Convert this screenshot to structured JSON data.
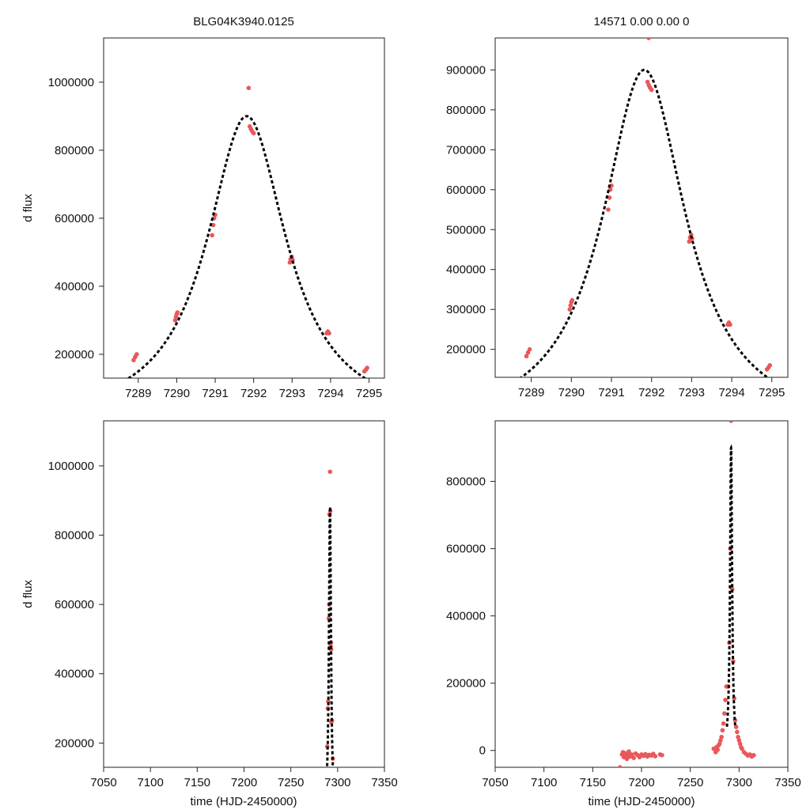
{
  "figure": {
    "point_color": "#e8585a",
    "model_color": "#000000"
  },
  "chart_data": [
    {
      "id": "top-left",
      "type": "scatter",
      "title": "BLG04K3940.0125",
      "xlabel": "",
      "ylabel": "d flux",
      "xlim": [
        7288.1,
        7295.4
      ],
      "ylim": [
        130000,
        1130000
      ],
      "xticks": [
        7289,
        7290,
        7291,
        7292,
        7293,
        7294,
        7295
      ],
      "yticks": [
        200000,
        400000,
        600000,
        800000,
        1000000
      ],
      "grid": false,
      "model": {
        "t0": 7291.82,
        "peak": 900000,
        "base": 0,
        "halfwidth": 1.26,
        "style": "dashed"
      },
      "points": [
        [
          7288.88,
          183000
        ],
        [
          7288.92,
          192000
        ],
        [
          7288.96,
          200000
        ],
        [
          7289.96,
          300000
        ],
        [
          7289.98,
          310000
        ],
        [
          7290.0,
          318000
        ],
        [
          7290.02,
          323000
        ],
        [
          7290.92,
          550000
        ],
        [
          7290.95,
          580000
        ],
        [
          7290.97,
          600000
        ],
        [
          7291.0,
          610000
        ],
        [
          7291.87,
          983000
        ],
        [
          7291.9,
          870000
        ],
        [
          7291.93,
          862000
        ],
        [
          7291.96,
          856000
        ],
        [
          7292.0,
          850000
        ],
        [
          7292.94,
          470000
        ],
        [
          7292.96,
          480000
        ],
        [
          7292.99,
          487000
        ],
        [
          7293.01,
          478000
        ],
        [
          7293.9,
          262000
        ],
        [
          7293.93,
          267000
        ],
        [
          7293.96,
          262000
        ],
        [
          7294.88,
          150000
        ],
        [
          7294.92,
          155000
        ],
        [
          7294.95,
          160000
        ]
      ]
    },
    {
      "id": "top-right",
      "type": "scatter",
      "title": "14571   0.00   0.00   0",
      "xlabel": "",
      "ylabel": "",
      "xlim": [
        7288.1,
        7295.4
      ],
      "ylim": [
        130000,
        980000
      ],
      "xticks": [
        7289,
        7290,
        7291,
        7292,
        7293,
        7294,
        7295
      ],
      "yticks": [
        200000,
        300000,
        400000,
        500000,
        600000,
        700000,
        800000,
        900000
      ],
      "grid": false,
      "model": {
        "t0": 7291.82,
        "peak": 900000,
        "base": 0,
        "halfwidth": 1.26,
        "style": "dashed"
      },
      "points": [
        [
          7288.88,
          183000
        ],
        [
          7288.92,
          192000
        ],
        [
          7288.96,
          200000
        ],
        [
          7289.96,
          300000
        ],
        [
          7289.98,
          310000
        ],
        [
          7290.0,
          318000
        ],
        [
          7290.02,
          323000
        ],
        [
          7290.92,
          550000
        ],
        [
          7290.95,
          580000
        ],
        [
          7290.97,
          600000
        ],
        [
          7291.0,
          610000
        ],
        [
          7291.93,
          980000
        ],
        [
          7291.9,
          870000
        ],
        [
          7291.93,
          862000
        ],
        [
          7291.96,
          856000
        ],
        [
          7292.0,
          850000
        ],
        [
          7292.94,
          470000
        ],
        [
          7292.96,
          480000
        ],
        [
          7292.99,
          487000
        ],
        [
          7293.01,
          478000
        ],
        [
          7293.9,
          262000
        ],
        [
          7293.93,
          267000
        ],
        [
          7293.96,
          262000
        ],
        [
          7294.88,
          150000
        ],
        [
          7294.92,
          155000
        ],
        [
          7294.95,
          160000
        ]
      ]
    },
    {
      "id": "bottom-left",
      "type": "scatter",
      "title": "",
      "xlabel": "time (HJD-2450000)",
      "ylabel": "d flux",
      "xlim": [
        7050,
        7350
      ],
      "ylim": [
        130000,
        1130000
      ],
      "xticks": [
        7050,
        7100,
        7150,
        7200,
        7250,
        7300,
        7350
      ],
      "yticks": [
        200000,
        400000,
        600000,
        800000,
        1000000
      ],
      "grid": false,
      "model": {
        "t0": 7291.82,
        "peak": 900000,
        "base": 0,
        "halfwidth": 1.26,
        "style": "dashed"
      },
      "points": [
        [
          7288.9,
          190000
        ],
        [
          7289.5,
          300000
        ],
        [
          7290.0,
          320000
        ],
        [
          7290.5,
          560000
        ],
        [
          7291.0,
          600000
        ],
        [
          7291.3,
          860000
        ],
        [
          7291.9,
          983000
        ],
        [
          7292.2,
          870000
        ],
        [
          7292.5,
          480000
        ],
        [
          7292.9,
          490000
        ],
        [
          7293.0,
          470000
        ],
        [
          7293.3,
          260000
        ],
        [
          7294.0,
          265000
        ],
        [
          7294.9,
          155000
        ]
      ]
    },
    {
      "id": "bottom-right",
      "type": "scatter",
      "title": "",
      "xlabel": "time (HJD-2450000)",
      "ylabel": "",
      "xlim": [
        7050,
        7350
      ],
      "ylim": [
        -50000,
        980000
      ],
      "xticks": [
        7050,
        7100,
        7150,
        7200,
        7250,
        7300,
        7350
      ],
      "yticks": [
        0,
        200000,
        400000,
        600000,
        800000
      ],
      "grid": false,
      "model": {
        "t0": 7291.82,
        "peak": 900000,
        "base": 0,
        "halfwidth": 1.26,
        "style": "dashed",
        "range": [
          7287.5,
          7296.0
        ]
      },
      "points": [
        [
          7178,
          -50000
        ],
        [
          7180,
          -12000
        ],
        [
          7181,
          -5000
        ],
        [
          7182,
          -20000
        ],
        [
          7183,
          -8000
        ],
        [
          7184,
          -15000
        ],
        [
          7185,
          -25000
        ],
        [
          7186,
          -10000
        ],
        [
          7187,
          -3000
        ],
        [
          7188,
          -18000
        ],
        [
          7190,
          -12000
        ],
        [
          7192,
          -22000
        ],
        [
          7194,
          -9000
        ],
        [
          7196,
          -14000
        ],
        [
          7198,
          -20000
        ],
        [
          7200,
          -12000
        ],
        [
          7202,
          -16000
        ],
        [
          7204,
          -11000
        ],
        [
          7206,
          -18000
        ],
        [
          7208,
          -13000
        ],
        [
          7210,
          -15000
        ],
        [
          7212,
          -10000
        ],
        [
          7214,
          -17000
        ],
        [
          7219,
          -12000
        ],
        [
          7221,
          -14000
        ],
        [
          7274,
          5000
        ],
        [
          7276,
          -5000
        ],
        [
          7277,
          10000
        ],
        [
          7278,
          2000
        ],
        [
          7279,
          15000
        ],
        [
          7280,
          20000
        ],
        [
          7281,
          30000
        ],
        [
          7282,
          40000
        ],
        [
          7283,
          60000
        ],
        [
          7284,
          80000
        ],
        [
          7285,
          110000
        ],
        [
          7286,
          150000
        ],
        [
          7287,
          190000
        ],
        [
          7288.9,
          190000
        ],
        [
          7290,
          320000
        ],
        [
          7291,
          600000
        ],
        [
          7291.9,
          980000
        ],
        [
          7293,
          480000
        ],
        [
          7294,
          265000
        ],
        [
          7295,
          155000
        ],
        [
          7296,
          90000
        ],
        [
          7297,
          70000
        ],
        [
          7298,
          55000
        ],
        [
          7299,
          40000
        ],
        [
          7300,
          30000
        ],
        [
          7301,
          20000
        ],
        [
          7302,
          10000
        ],
        [
          7303,
          5000
        ],
        [
          7305,
          -5000
        ],
        [
          7307,
          -10000
        ],
        [
          7309,
          -15000
        ],
        [
          7311,
          -12000
        ],
        [
          7313,
          -18000
        ],
        [
          7315,
          -14000
        ]
      ]
    }
  ]
}
